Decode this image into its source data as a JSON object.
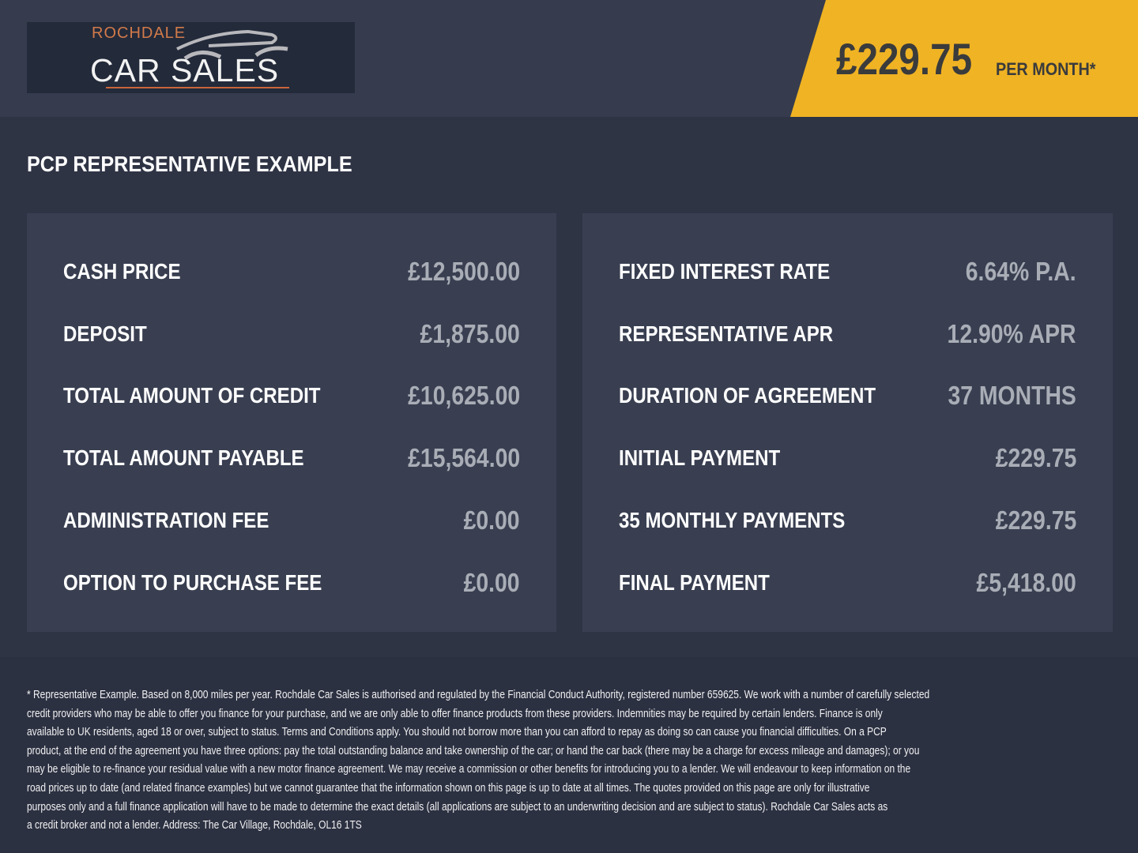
{
  "logo": {
    "top_text": "ROCHDALE",
    "main_text": "CAR SALES"
  },
  "price_badge": {
    "amount": "£229.75",
    "suffix": "PER MONTH*",
    "color": "#f0b323"
  },
  "title": "PCP REPRESENTATIVE EXAMPLE",
  "left_panel": [
    {
      "label": "CASH PRICE",
      "value": "£12,500.00"
    },
    {
      "label": "DEPOSIT",
      "value": "£1,875.00"
    },
    {
      "label": "TOTAL AMOUNT OF CREDIT",
      "value": "£10,625.00"
    },
    {
      "label": "TOTAL AMOUNT PAYABLE",
      "value": "£15,564.00"
    },
    {
      "label": "ADMINISTRATION FEE",
      "value": "£0.00"
    },
    {
      "label": "OPTION TO PURCHASE FEE",
      "value": "£0.00"
    }
  ],
  "right_panel": [
    {
      "label": "FIXED INTEREST RATE",
      "value": "6.64% P.A."
    },
    {
      "label": "REPRESENTATIVE APR",
      "value": "12.90% APR"
    },
    {
      "label": "DURATION OF AGREEMENT",
      "value": "37 MONTHS"
    },
    {
      "label": "INITIAL PAYMENT",
      "value": "£229.75"
    },
    {
      "label": "35 MONTHLY PAYMENTS",
      "value": "£229.75"
    },
    {
      "label": "FINAL PAYMENT",
      "value": "£5,418.00"
    }
  ],
  "disclaimer_lines": [
    "* Representative Example. Based on 8,000 miles per year. Rochdale Car Sales is authorised and regulated by the Financial Conduct Authority, registered number 659625. We work with a number of carefully selected",
    "credit providers who may be able to offer you finance for your purchase, and we are only able to offer finance products from these providers. Indemnities may be required by certain lenders. Finance is only",
    "available to UK residents, aged 18 or over, subject to status. Terms and Conditions apply. You should not borrow more than you can afford to repay as doing so can cause you financial difficulties. On a PCP",
    "product, at the end of the agreement you have three options: pay the total outstanding balance and take ownership of the car; or hand the car back (there may be a charge for excess mileage and damages); or you",
    "may be eligible to re-finance your residual value with a new motor finance agreement. We may receive a commission or other benefits for introducing you to a lender. We will endeavour to keep information on the",
    "road prices up to date (and related finance examples) but we cannot guarantee that the information shown on this page is up to date at all times. The quotes provided on this page are only for illustrative",
    "purposes only and a full finance application will have to be made to determine the exact details (all applications are subject to an underwriting decision and are subject to status). Rochdale Car Sales acts as",
    "a credit broker and not a lender. Address: The Car Village, Rochdale, OL16 1TS"
  ]
}
